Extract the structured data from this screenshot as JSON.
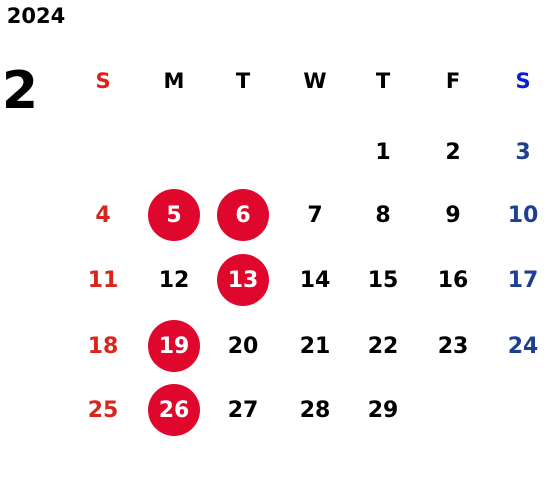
{
  "year": "2024",
  "month": "2",
  "weekdays": [
    "S",
    "M",
    "T",
    "W",
    "T",
    "F",
    "S"
  ],
  "weeks": [
    [
      null,
      null,
      null,
      null,
      1,
      2,
      3
    ],
    [
      4,
      5,
      6,
      7,
      8,
      9,
      10
    ],
    [
      11,
      12,
      13,
      14,
      15,
      16,
      17
    ],
    [
      18,
      19,
      20,
      21,
      22,
      23,
      24
    ],
    [
      25,
      26,
      27,
      28,
      29,
      null,
      null
    ]
  ],
  "marked_days": [
    5,
    6,
    13,
    19,
    26
  ]
}
